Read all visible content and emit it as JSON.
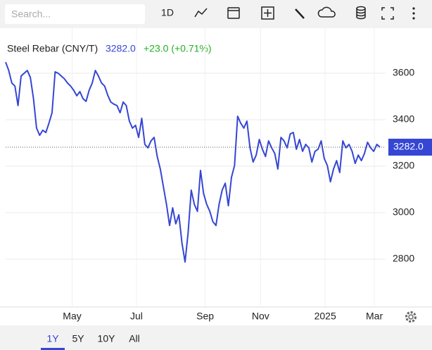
{
  "toolbar": {
    "search_placeholder": "Search...",
    "interval": "1D"
  },
  "chart_data": {
    "type": "line",
    "title": "Steel Rebar (CNY/T)",
    "price": "3282.0",
    "change": "+23.0 (+0.71%)",
    "last_value_label": "3282.0",
    "series": [
      {
        "name": "Steel Rebar (CNY/T)",
        "color": "#3546d4",
        "values": [
          3648,
          3612,
          3558,
          3545,
          3461,
          3588,
          3600,
          3612,
          3582,
          3491,
          3364,
          3333,
          3355,
          3345,
          3385,
          3430,
          3606,
          3600,
          3588,
          3576,
          3558,
          3545,
          3527,
          3503,
          3521,
          3491,
          3479,
          3527,
          3558,
          3612,
          3588,
          3558,
          3545,
          3506,
          3476,
          3467,
          3461,
          3430,
          3476,
          3461,
          3394,
          3364,
          3376,
          3324,
          3406,
          3294,
          3279,
          3309,
          3324,
          3242,
          3188,
          3112,
          3036,
          2945,
          3021,
          2952,
          2991,
          2870,
          2788,
          2915,
          3097,
          3036,
          3006,
          3182,
          3082,
          3036,
          3006,
          2961,
          2945,
          3036,
          3097,
          3127,
          3030,
          3152,
          3203,
          3415,
          3385,
          3364,
          3394,
          3279,
          3218,
          3248,
          3315,
          3273,
          3242,
          3309,
          3279,
          3255,
          3188,
          3324,
          3309,
          3279,
          3339,
          3345,
          3273,
          3315,
          3264,
          3294,
          3279,
          3218,
          3264,
          3273,
          3309,
          3233,
          3203,
          3133,
          3188,
          3224,
          3173,
          3309,
          3279,
          3294,
          3264,
          3212,
          3248,
          3224,
          3255,
          3303,
          3279,
          3264,
          3294,
          3282
        ]
      }
    ],
    "xticks": [
      {
        "value": 21.5,
        "label": "May"
      },
      {
        "value": 42.3,
        "label": "Jul"
      },
      {
        "value": 64.5,
        "label": "Sep"
      },
      {
        "value": 82.4,
        "label": "Nov"
      },
      {
        "value": 103.3,
        "label": "2025"
      },
      {
        "value": 119.2,
        "label": "Mar"
      }
    ],
    "ylim": [
      2594,
      3794
    ],
    "yticks": [
      2800,
      3000,
      3200,
      3400,
      3600
    ],
    "grid": true
  },
  "range_buttons": [
    "1Y",
    "5Y",
    "10Y",
    "All"
  ],
  "selected_range": 0
}
